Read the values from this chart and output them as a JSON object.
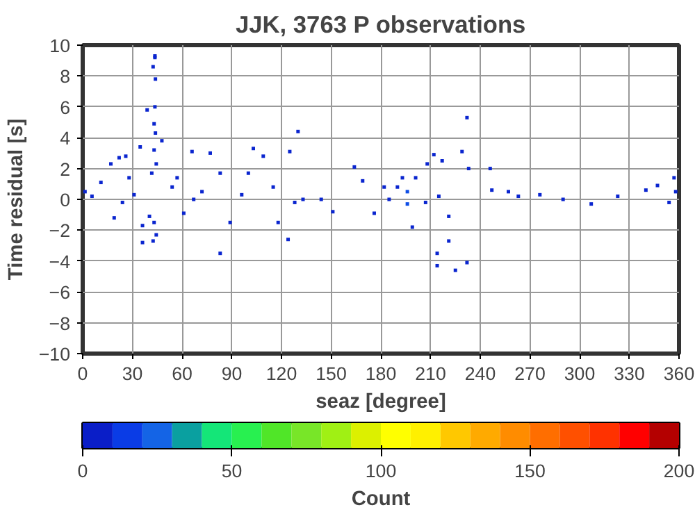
{
  "chart_data": {
    "type": "scatter",
    "title": "JJK, 3763 P observations",
    "xlabel": "seaz [degree]",
    "ylabel": "Time residual [s]",
    "clabel": "Count",
    "x": [
      43.6,
      43.6,
      42.5,
      43.9,
      43.6,
      38.9,
      43.1,
      43.9,
      47.8,
      34.7,
      43.1,
      44.4,
      41.7,
      40.3,
      43.1,
      36.1,
      36.1,
      42.5,
      44.4,
      1.4,
      5.6,
      11,
      17,
      22,
      19,
      26,
      28,
      31,
      24,
      54,
      57,
      66,
      77,
      61,
      72,
      67,
      83,
      89,
      83,
      96,
      103,
      109,
      100,
      115,
      118,
      124,
      130,
      125,
      128,
      133,
      144,
      151,
      164,
      169,
      176,
      182,
      196,
      196,
      193,
      199,
      190,
      185,
      208,
      217,
      212,
      232,
      229,
      233,
      214,
      214,
      225,
      221,
      232,
      221,
      215,
      246,
      247,
      257,
      263,
      276,
      290,
      307,
      323,
      340,
      347,
      357,
      358,
      354,
      207,
      201
    ],
    "values": [
      9.3,
      9.2,
      8.6,
      7.8,
      6.0,
      5.8,
      4.9,
      4.3,
      3.8,
      3.4,
      3.2,
      2.3,
      1.7,
      -1.1,
      -1.5,
      -1.7,
      -2.8,
      -2.7,
      -2.3,
      0.5,
      0.2,
      1.1,
      2.3,
      2.7,
      -1.2,
      2.8,
      1.4,
      0.3,
      -0.2,
      0.8,
      1.4,
      3.1,
      3.0,
      -0.9,
      0.5,
      0,
      1.7,
      -1.5,
      -3.5,
      0.3,
      3.3,
      2.8,
      1.7,
      0.8,
      -1.5,
      -2.6,
      4.4,
      3.1,
      -0.2,
      0,
      0,
      -0.8,
      2.1,
      1.2,
      -0.9,
      0.8,
      0.5,
      -0.3,
      1.4,
      -1.8,
      0.8,
      0,
      2.3,
      2.5,
      2.9,
      5.3,
      3.1,
      2.0,
      -3.5,
      -4.3,
      -4.6,
      -2.7,
      -4.1,
      -1.1,
      0.2,
      2.0,
      0.6,
      0.5,
      0.2,
      0.3,
      0,
      -0.3,
      0.2,
      0.6,
      0.9,
      1.4,
      0.5,
      -0.2,
      -0.2,
      1.4
    ],
    "cvalues": [
      3,
      3,
      3,
      3,
      3,
      3,
      3,
      3,
      3,
      3,
      3,
      3,
      3,
      3,
      3,
      3,
      3,
      3,
      3,
      3,
      3,
      3,
      3,
      3,
      3,
      3,
      3,
      3,
      3,
      3,
      3,
      3,
      3,
      3,
      3,
      3,
      3,
      3,
      3,
      3,
      3,
      3,
      3,
      3,
      3,
      3,
      3,
      3,
      3,
      3,
      3,
      3,
      3,
      3,
      3,
      3,
      15,
      15,
      3,
      3,
      3,
      3,
      3,
      3,
      3,
      3,
      3,
      3,
      3,
      3,
      3,
      3,
      3,
      3,
      3,
      3,
      3,
      3,
      3,
      3,
      3,
      3,
      3,
      3,
      3,
      3,
      3,
      3,
      3,
      3
    ],
    "marker": "square",
    "xlim": [
      0,
      360
    ],
    "ylim": [
      -10,
      10
    ],
    "xticks": [
      0,
      30,
      60,
      90,
      120,
      150,
      180,
      210,
      240,
      270,
      300,
      330,
      360
    ],
    "yticks": [
      -10,
      -8,
      -6,
      -4,
      -2,
      0,
      2,
      4,
      6,
      8,
      10
    ],
    "clim": [
      0,
      200
    ],
    "cticks": [
      0,
      50,
      100,
      150,
      200
    ],
    "grid": true
  }
}
